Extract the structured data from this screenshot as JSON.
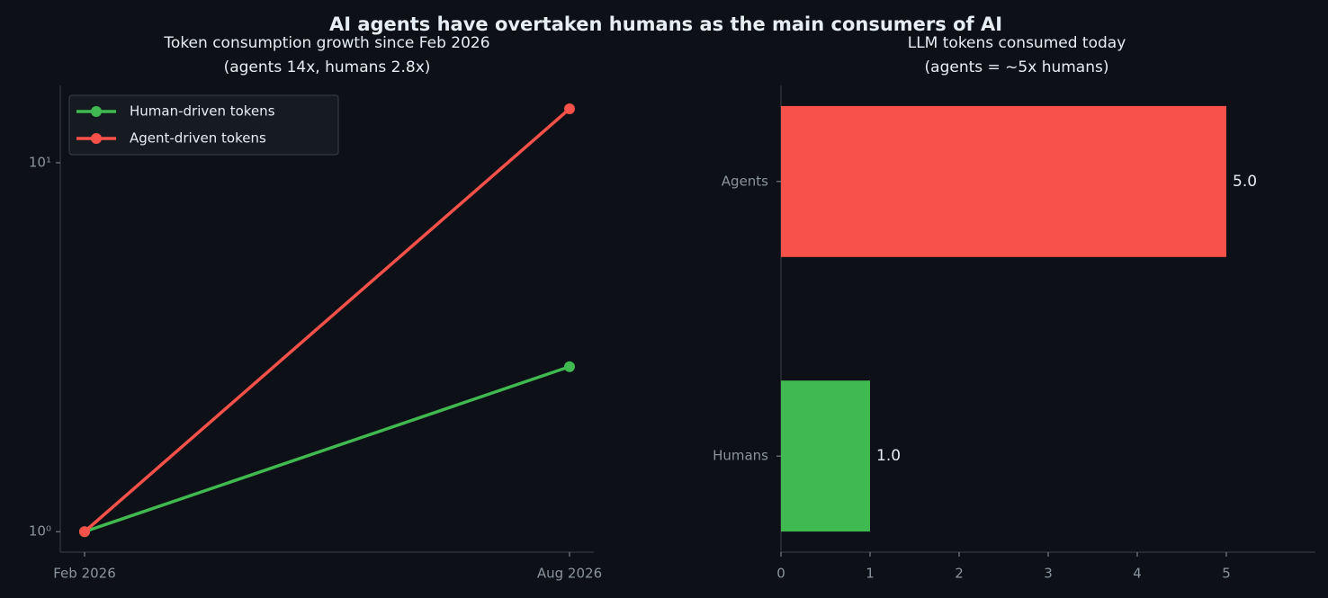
{
  "title": "AI agents have overtaken humans as the main consumers of AI",
  "chart_data": [
    {
      "type": "line",
      "title": "Token consumption growth since Feb 2026",
      "subtitle": "(agents 14x, humans 2.8x)",
      "x": [
        "Feb 2026",
        "Aug 2026"
      ],
      "series": [
        {
          "name": "Human-driven tokens",
          "color": "#3fb950",
          "values": [
            1,
            2.8
          ]
        },
        {
          "name": "Agent-driven tokens",
          "color": "#f85149",
          "values": [
            1,
            14
          ]
        }
      ],
      "log_scale": true,
      "ylim": [
        0.88,
        16.2
      ],
      "yticks": [
        {
          "value": 1,
          "label": "10⁰"
        },
        {
          "value": 10,
          "label": "10¹"
        }
      ],
      "legend": "upper-left"
    },
    {
      "type": "hbar",
      "title": "LLM tokens consumed today",
      "subtitle": "(agents = ~5x humans)",
      "categories": [
        "Humans",
        "Agents"
      ],
      "values": [
        1.0,
        5.0
      ],
      "value_labels": [
        "1.0",
        "5.0"
      ],
      "colors": [
        "#3fb950",
        "#f85149"
      ],
      "xlim": [
        0,
        6
      ],
      "xticks": [
        0,
        1,
        2,
        3,
        4,
        5
      ]
    }
  ]
}
